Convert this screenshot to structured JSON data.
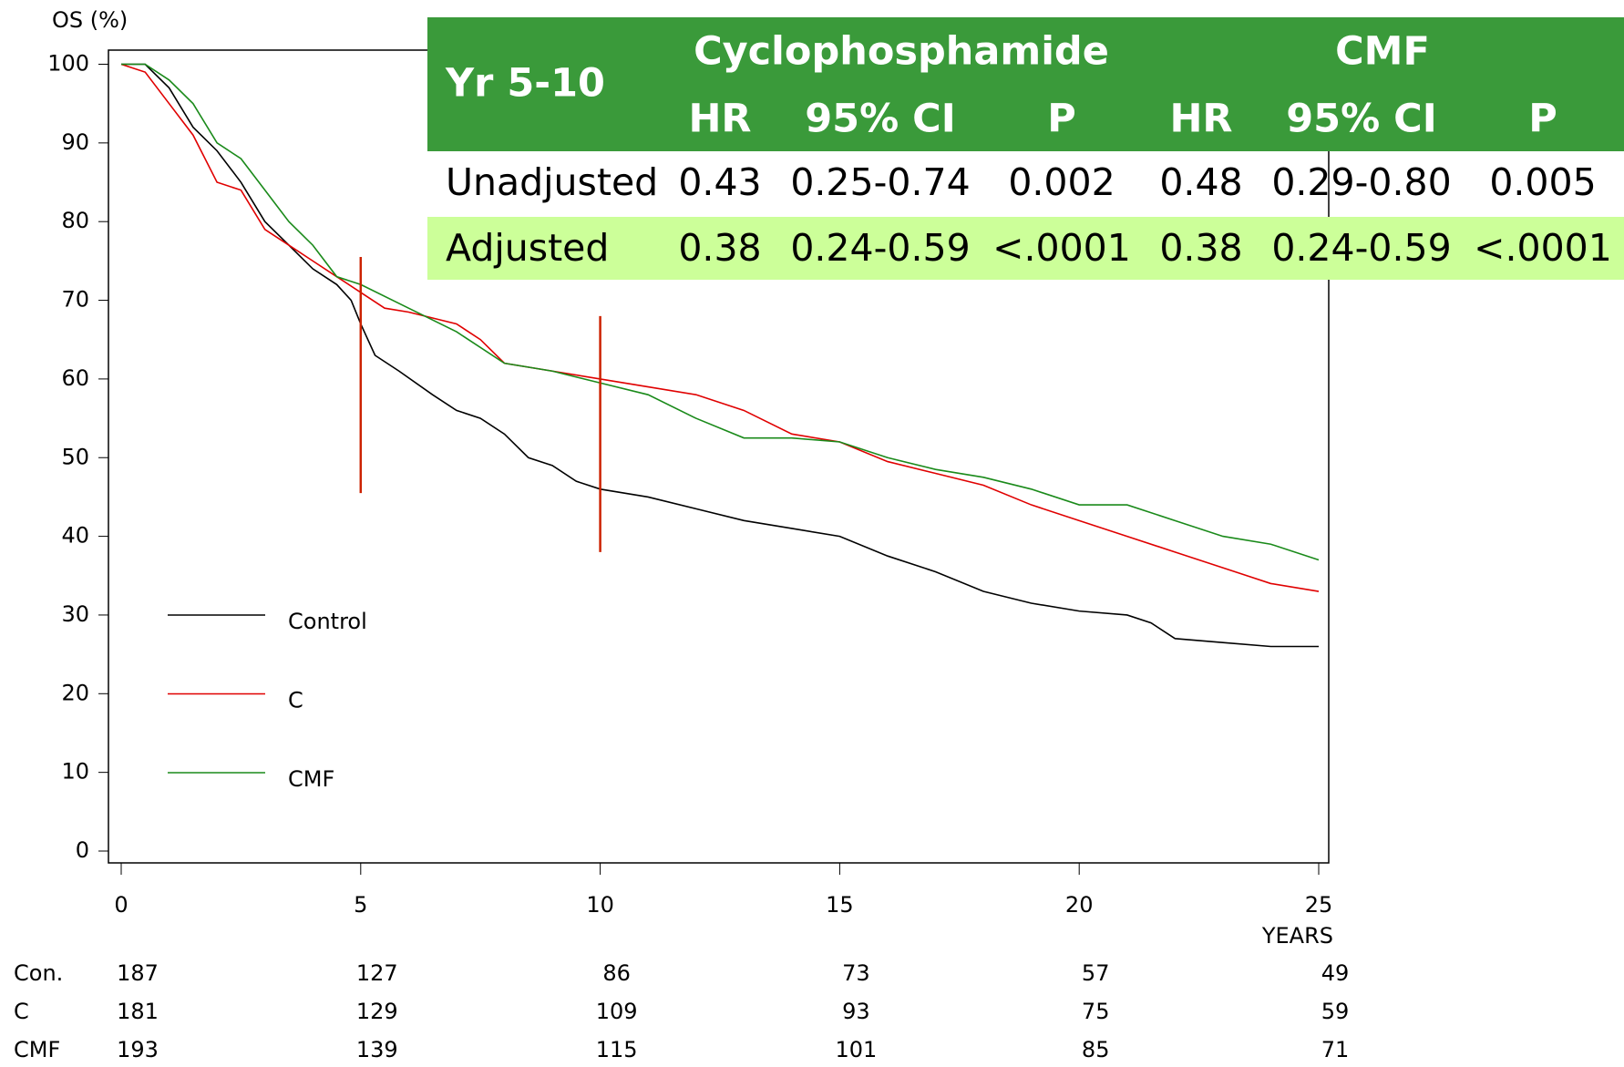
{
  "chart_data": {
    "type": "line",
    "y_label": "OS  (%)",
    "x_label": "YEARS",
    "xlim": [
      0,
      25
    ],
    "xticks": [
      0,
      5,
      10,
      15,
      20,
      25
    ],
    "ylim": [
      0,
      100
    ],
    "yticks": [
      0,
      10,
      20,
      30,
      40,
      50,
      60,
      70,
      80,
      90,
      100
    ],
    "series": [
      {
        "name": "Control",
        "color": "#000000",
        "x": [
          0,
          0.5,
          1,
          1.5,
          2,
          2.5,
          3,
          3.5,
          4,
          4.5,
          4.8,
          5,
          5.3,
          5.8,
          6.5,
          7,
          7.5,
          8,
          8.5,
          9,
          9.5,
          10,
          11,
          12,
          13,
          14,
          15,
          16,
          17,
          18,
          19,
          20,
          21,
          21.5,
          22,
          23,
          24,
          25
        ],
        "values": [
          100,
          100,
          97,
          92,
          89,
          85,
          80,
          77,
          74,
          72,
          70,
          67,
          63,
          61,
          58,
          56,
          55,
          53,
          50,
          49,
          47,
          46,
          45,
          43.5,
          42,
          41,
          40,
          37.5,
          35.5,
          33,
          31.5,
          30.5,
          30,
          29,
          27,
          26.5,
          26,
          26
        ]
      },
      {
        "name": "C",
        "color": "#e00000",
        "x": [
          0,
          0.5,
          1,
          1.5,
          2,
          2.5,
          3,
          3.5,
          4,
          4.5,
          5,
          5.5,
          6,
          7,
          7.5,
          8,
          9,
          10,
          11,
          12,
          13,
          14,
          15,
          16,
          17,
          18,
          19,
          20,
          21,
          22,
          23,
          24,
          25
        ],
        "values": [
          100,
          99,
          95,
          91,
          85,
          84,
          79,
          77,
          75,
          73,
          71,
          69,
          68.5,
          67,
          65,
          62,
          61,
          60,
          59,
          58,
          56,
          53,
          52,
          49.5,
          48,
          46.5,
          44,
          42,
          40,
          38,
          36,
          34,
          33
        ]
      },
      {
        "name": "CMF",
        "color": "#1a8a1a",
        "x": [
          0,
          0.5,
          1,
          1.5,
          2,
          2.5,
          3,
          3.5,
          4,
          4.5,
          5,
          6,
          7,
          8,
          9,
          10,
          11,
          12,
          13,
          14,
          15,
          16,
          17,
          18,
          19,
          20,
          21,
          22,
          23,
          24,
          25
        ],
        "values": [
          100,
          100,
          98,
          95,
          90,
          88,
          84,
          80,
          77,
          73,
          72,
          69,
          66,
          62,
          61,
          59.5,
          58,
          55,
          52.5,
          52.5,
          52,
          50,
          48.5,
          47.5,
          46,
          44,
          44,
          42,
          40,
          39,
          37
        ]
      }
    ],
    "markers": [
      {
        "x": 5,
        "y": [
          45.5,
          75.5
        ],
        "color": "#cc2200"
      },
      {
        "x": 10,
        "y": [
          38,
          68
        ],
        "color": "#cc2200"
      }
    ],
    "risk_table": [
      {
        "name": "Con.",
        "values": [
          187,
          127,
          86,
          73,
          57,
          49
        ]
      },
      {
        "name": "C",
        "values": [
          181,
          129,
          109,
          93,
          75,
          59
        ]
      },
      {
        "name": "CMF",
        "values": [
          193,
          139,
          115,
          101,
          85,
          71
        ]
      }
    ],
    "table": {
      "corner": "Yr 5-10",
      "groups": [
        "Cyclophosphamide",
        "CMF"
      ],
      "columns": [
        "HR",
        "95% CI",
        "P",
        "HR",
        "95% CI",
        "P"
      ],
      "header_color": "#3a9a3a",
      "highlight_color": "#ccff99",
      "rows": [
        [
          "Unadjusted",
          0.43,
          "0.25-0.74",
          0.002,
          0.48,
          "0.29-0.80",
          0.005
        ],
        [
          "Adjusted",
          0.38,
          "0.24-0.59",
          "<.0001",
          0.38,
          "0.24-0.59",
          "<.0001"
        ]
      ]
    }
  }
}
